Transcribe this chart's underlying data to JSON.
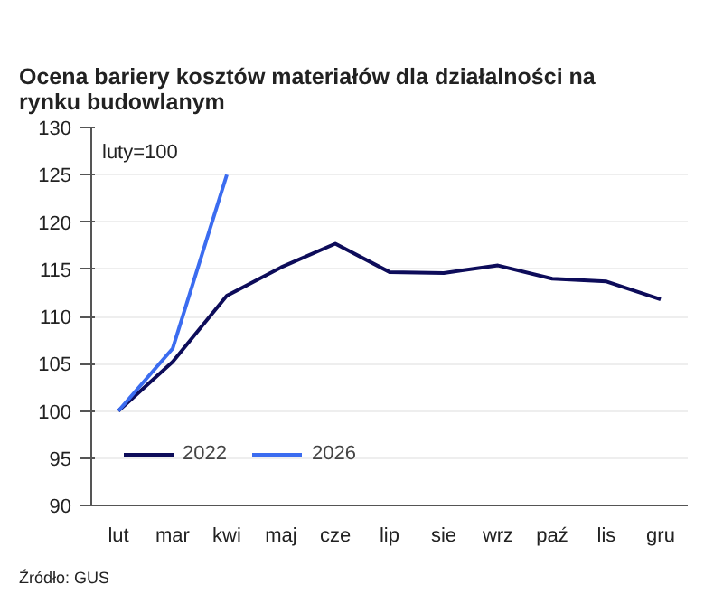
{
  "chart_data": {
    "type": "line",
    "title": "Ocena bariery kosztów materiałów dla  działalności na rynku budowlanym",
    "categories": [
      "lut",
      "mar",
      "kwi",
      "maj",
      "cze",
      "lip",
      "sie",
      "wrz",
      "paź",
      "lis",
      "gru"
    ],
    "series": [
      {
        "name": "2022",
        "color": "#0d0c5a",
        "values": [
          100,
          105.2,
          112.2,
          115.2,
          117.7,
          114.7,
          114.6,
          115.4,
          114.0,
          113.7,
          111.8
        ]
      },
      {
        "name": "2026",
        "color": "#3b6cf0",
        "values": [
          100,
          106.6,
          125,
          null,
          null,
          null,
          null,
          null,
          null,
          null,
          null
        ]
      }
    ],
    "ylim": [
      90,
      130
    ],
    "yticks": [
      90,
      95,
      100,
      105,
      110,
      115,
      120,
      125,
      130
    ],
    "grid": "y",
    "legend": "bottom left",
    "annotations": [
      "luty=100",
      "Źródło: GUS"
    ]
  }
}
